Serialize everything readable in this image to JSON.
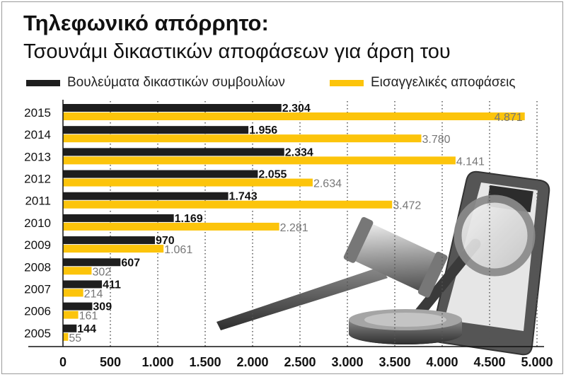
{
  "header": {
    "title": "Τηλεφωνικό απόρρητο:",
    "subtitle": "Τσουνάμι δικαστικών αποφάσεων για άρση του"
  },
  "legend": [
    {
      "label": "Βουλεύματα δικαστικών συμβουλίων",
      "color": "#1e1e1e"
    },
    {
      "label": "Εισαγγελικές αποφάσεις",
      "color": "#fcc40b"
    }
  ],
  "chart_data": {
    "type": "bar",
    "orientation": "horizontal",
    "categories": [
      "2015",
      "2014",
      "2013",
      "2012",
      "2011",
      "2010",
      "2009",
      "2008",
      "2007",
      "2006",
      "2005"
    ],
    "series": [
      {
        "name": "Βουλεύματα δικαστικών συμβουλίων",
        "color": "#1e1e1e",
        "values": [
          2304,
          1956,
          2334,
          2055,
          1743,
          1169,
          970,
          607,
          411,
          309,
          144
        ],
        "labels": [
          "2.304",
          "1.956",
          "2.334",
          "2.055",
          "1.743",
          "1.169",
          "970",
          "607",
          "411",
          "309",
          "144"
        ]
      },
      {
        "name": "Εισαγγελικές αποφάσεις",
        "color": "#fcc40b",
        "values": [
          4871,
          3780,
          4141,
          2634,
          3472,
          2281,
          1061,
          302,
          214,
          161,
          55
        ],
        "labels": [
          "4.871",
          "3.780",
          "4.141",
          "2.634",
          "3.472",
          "2.281",
          "1.061",
          "302",
          "214",
          "161",
          "55"
        ]
      }
    ],
    "x_ticks": [
      0,
      500,
      1000,
      1500,
      2000,
      2500,
      3000,
      3500,
      4000,
      4500,
      5000
    ],
    "x_tick_labels": [
      "0",
      "500",
      "1.000",
      "1.500",
      "2.000",
      "2.500",
      "3.000",
      "3.500",
      "4.000",
      "4.500",
      "5.000"
    ],
    "xlim": [
      0,
      5000
    ],
    "grid": "vertical dotted",
    "legend_position": "top"
  }
}
